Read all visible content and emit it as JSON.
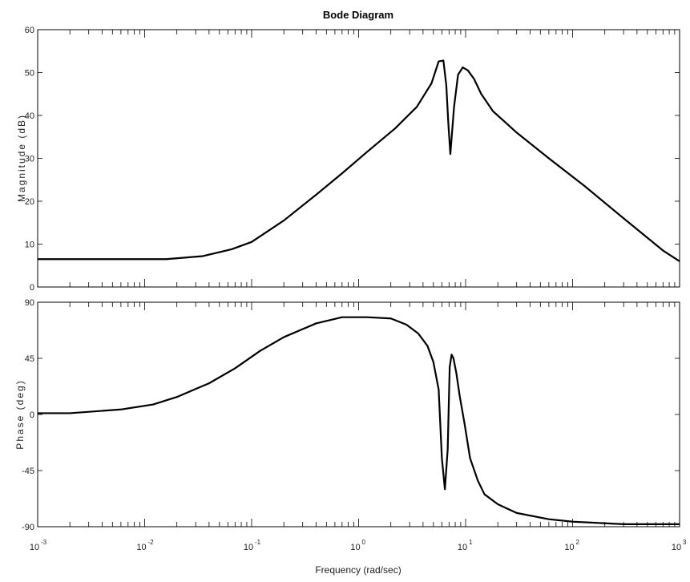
{
  "chart_data": {
    "type": "line",
    "title": "Bode Diagram",
    "xlabel": "Frequency  (rad/sec)",
    "x_scale": "log",
    "xlim": [
      0.001,
      1000
    ],
    "x_ticks": [
      {
        "base": "10",
        "exp": "-3"
      },
      {
        "base": "10",
        "exp": "-2"
      },
      {
        "base": "10",
        "exp": "-1"
      },
      {
        "base": "10",
        "exp": "0"
      },
      {
        "base": "10",
        "exp": "1"
      },
      {
        "base": "10",
        "exp": "2"
      },
      {
        "base": "10",
        "exp": "3"
      }
    ],
    "grid": false,
    "panels": [
      {
        "ylabel": "Magnitude (dB)",
        "ylim": [
          0,
          60
        ],
        "yticks": [
          0,
          10,
          20,
          30,
          40,
          50,
          60
        ],
        "x": [
          0.001,
          0.0055,
          0.016,
          0.035,
          0.065,
          0.1,
          0.2,
          0.4,
          0.7,
          1.2,
          2.2,
          3.5,
          4.8,
          5.6,
          6.2,
          6.6,
          6.9,
          7.2,
          7.8,
          8.5,
          9.4,
          10.5,
          12,
          14,
          18,
          30,
          60,
          130,
          300,
          700,
          1000
        ],
        "values": [
          6.5,
          6.5,
          6.5,
          7.2,
          8.8,
          10.5,
          15.5,
          21.5,
          26.5,
          31.5,
          37,
          42,
          47.5,
          52.6,
          52.8,
          47,
          38,
          31,
          42,
          49.5,
          51.2,
          50.5,
          48.5,
          45,
          41,
          36,
          30,
          23.5,
          16,
          8.5,
          6
        ]
      },
      {
        "ylabel": "Phase (deg)",
        "ylim": [
          -90,
          90
        ],
        "yticks": [
          90,
          45,
          0,
          -45,
          -90
        ],
        "x": [
          0.001,
          0.002,
          0.006,
          0.012,
          0.02,
          0.04,
          0.07,
          0.12,
          0.2,
          0.4,
          0.7,
          1.2,
          2,
          2.8,
          3.6,
          4.4,
          5,
          5.6,
          6,
          6.4,
          6.8,
          7.1,
          7.4,
          7.7,
          8.2,
          8.8,
          9.8,
          11,
          13,
          15,
          20,
          30,
          60,
          100,
          300,
          1000
        ],
        "values": [
          1,
          1,
          4,
          8,
          14,
          25,
          37,
          51,
          62,
          73,
          78,
          78,
          77,
          72,
          65,
          55,
          42,
          20,
          -35,
          -60,
          -28,
          38,
          48,
          45,
          33,
          15,
          -8,
          -35,
          -53,
          -64,
          -72,
          -79,
          -84,
          -86,
          -88,
          -88
        ]
      }
    ]
  }
}
